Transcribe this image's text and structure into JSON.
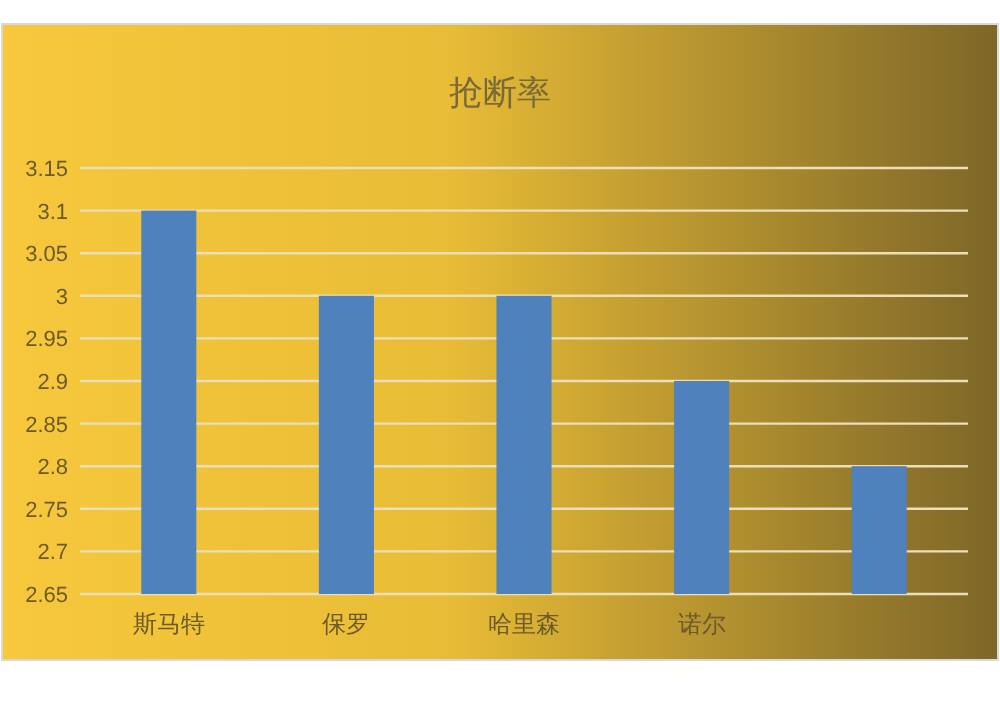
{
  "chart_data": {
    "type": "bar",
    "title": "抢断率",
    "categories": [
      "斯马特",
      "保罗",
      "哈里森",
      "诺尔",
      null
    ],
    "values": [
      3.1,
      3.0,
      3.0,
      2.9,
      2.8
    ],
    "color": "#4f81bd",
    "ylim": [
      2.65,
      3.15
    ],
    "yticks": [
      2.65,
      2.7,
      2.75,
      2.8,
      2.85,
      2.9,
      2.95,
      3,
      3.05,
      3.1,
      3.15
    ],
    "grid": "y"
  }
}
